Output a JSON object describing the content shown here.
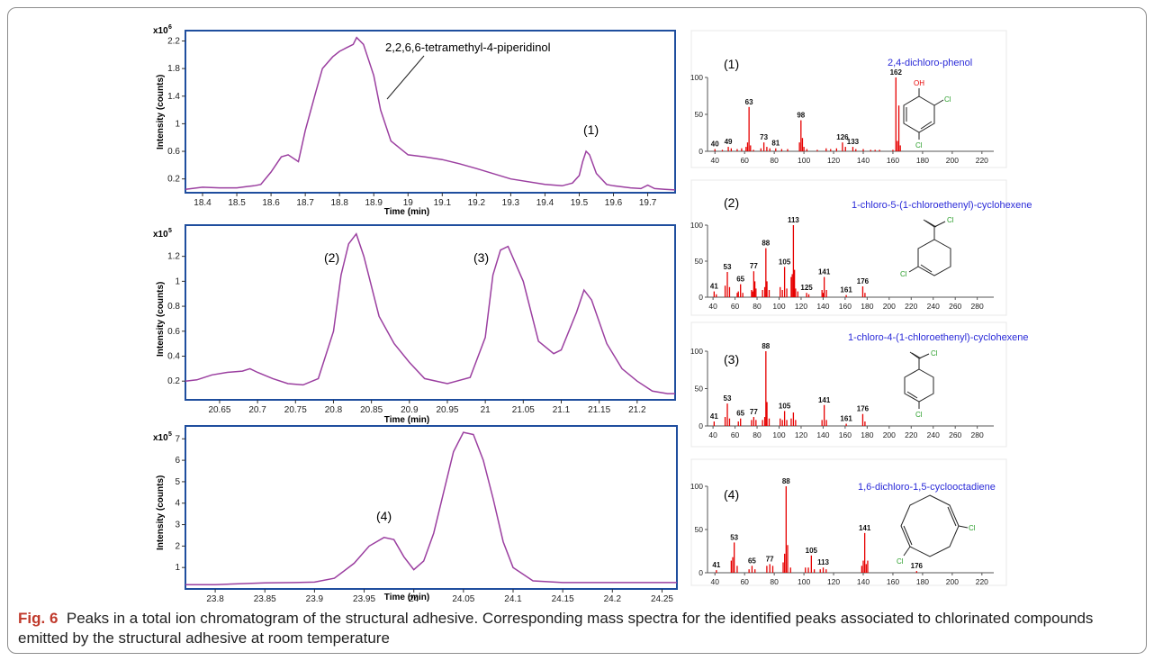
{
  "caption": {
    "label": "Fig. 6",
    "text": "Peaks in a total ion chromatogram of the structural adhesive. Corresponding mass spectra for the identified peaks associated to chlorinated compounds emitted by the structural adhesive at room temperature"
  },
  "colors": {
    "trace": "#9b3fa0",
    "frame": "#1f4e9e",
    "spectrum": "#e60000",
    "compound": "#2b2bd8"
  },
  "chart_data": [
    {
      "type": "line",
      "ylabel": "Intensity (counts)",
      "xlabel": "Time (min)",
      "y_multiplier": "x10",
      "y_exp": "6",
      "xlim": [
        18.35,
        19.78
      ],
      "ylim": [
        0,
        2.35
      ],
      "xticks": [
        "18.4",
        "18.5",
        "18.6",
        "18.7",
        "18.8",
        "18.9",
        "19",
        "19.1",
        "19.2",
        "19.3",
        "19.4",
        "19.5",
        "19.6",
        "19.7"
      ],
      "yticks": [
        "0.2",
        "0.6",
        "1",
        "1.4",
        "1.8",
        "2.2"
      ],
      "annotations": [
        "2,2,6,6-tetramethyl-4-piperidinol",
        "(1)"
      ],
      "series": [
        {
          "x": [
            18.35,
            18.4,
            18.45,
            18.5,
            18.53,
            18.55,
            18.57,
            18.6,
            18.63,
            18.65,
            18.68,
            18.7,
            18.73,
            18.75,
            18.78,
            18.8,
            18.82,
            18.84,
            18.85,
            18.86,
            18.87,
            18.88,
            18.9,
            18.92,
            18.95,
            19.0,
            19.05,
            19.1,
            19.15,
            19.2,
            19.3,
            19.4,
            19.45,
            19.48,
            19.5,
            19.51,
            19.52,
            19.53,
            19.55,
            19.58,
            19.6,
            19.65,
            19.68,
            19.7,
            19.72,
            19.75,
            19.78
          ],
          "y": [
            0.05,
            0.08,
            0.07,
            0.07,
            0.09,
            0.1,
            0.12,
            0.3,
            0.52,
            0.55,
            0.45,
            0.9,
            1.45,
            1.8,
            1.97,
            2.05,
            2.1,
            2.15,
            2.25,
            2.2,
            2.15,
            2.0,
            1.7,
            1.2,
            0.75,
            0.55,
            0.52,
            0.48,
            0.42,
            0.35,
            0.2,
            0.12,
            0.1,
            0.14,
            0.25,
            0.45,
            0.6,
            0.55,
            0.28,
            0.12,
            0.1,
            0.07,
            0.06,
            0.11,
            0.06,
            0.05,
            0.04
          ]
        }
      ]
    },
    {
      "type": "line",
      "ylabel": "Intensity (counts)",
      "xlabel": "Time (min)",
      "y_multiplier": "x10",
      "y_exp": "5",
      "xlim": [
        20.605,
        21.25
      ],
      "ylim": [
        0.05,
        1.45
      ],
      "xticks": [
        "20.65",
        "20.7",
        "20.75",
        "20.8",
        "20.85",
        "20.9",
        "20.95",
        "21",
        "21.05",
        "21.1",
        "21.15",
        "21.2"
      ],
      "yticks": [
        "0.2",
        "0.4",
        "0.6",
        "0.8",
        "1",
        "1.2"
      ],
      "annotations": [
        "(2)",
        "(3)"
      ],
      "series": [
        {
          "x": [
            20.605,
            20.62,
            20.64,
            20.66,
            20.68,
            20.69,
            20.7,
            20.72,
            20.74,
            20.76,
            20.78,
            20.8,
            20.81,
            20.82,
            20.83,
            20.84,
            20.86,
            20.88,
            20.9,
            20.92,
            20.95,
            20.98,
            21.0,
            21.01,
            21.02,
            21.03,
            21.05,
            21.07,
            21.09,
            21.1,
            21.12,
            21.13,
            21.14,
            21.16,
            21.18,
            21.2,
            21.22,
            21.24,
            21.25
          ],
          "y": [
            0.2,
            0.21,
            0.25,
            0.27,
            0.28,
            0.3,
            0.27,
            0.22,
            0.18,
            0.17,
            0.22,
            0.6,
            1.05,
            1.3,
            1.38,
            1.2,
            0.72,
            0.5,
            0.35,
            0.22,
            0.18,
            0.23,
            0.55,
            1.05,
            1.25,
            1.28,
            1.0,
            0.52,
            0.42,
            0.45,
            0.75,
            0.93,
            0.85,
            0.5,
            0.3,
            0.2,
            0.12,
            0.1,
            0.1
          ]
        }
      ]
    },
    {
      "type": "line",
      "ylabel": "Intensity (counts)",
      "xlabel": "Time (min)",
      "y_multiplier": "x10",
      "y_exp": "5",
      "xlim": [
        23.77,
        24.265
      ],
      "ylim": [
        0,
        7.6
      ],
      "xticks": [
        "23.8",
        "23.85",
        "23.9",
        "23.95",
        "24",
        "24.05",
        "24.1",
        "24.15",
        "24.2",
        "24.25"
      ],
      "yticks": [
        "1",
        "2",
        "3",
        "4",
        "5",
        "6",
        "7"
      ],
      "annotations": [
        "(4)"
      ],
      "series": [
        {
          "x": [
            23.77,
            23.8,
            23.85,
            23.88,
            23.9,
            23.92,
            23.94,
            23.955,
            23.97,
            23.98,
            23.99,
            24.0,
            24.01,
            24.02,
            24.03,
            24.04,
            24.05,
            24.06,
            24.07,
            24.08,
            24.09,
            24.1,
            24.12,
            24.15,
            24.2,
            24.265
          ],
          "y": [
            0.2,
            0.2,
            0.28,
            0.3,
            0.32,
            0.5,
            1.2,
            2.0,
            2.4,
            2.3,
            1.5,
            0.9,
            1.3,
            2.6,
            4.5,
            6.4,
            7.3,
            7.2,
            6.0,
            4.2,
            2.2,
            1.0,
            0.38,
            0.3,
            0.3,
            0.3
          ]
        }
      ]
    },
    {
      "type": "bar",
      "label": "(1)",
      "compound": "2,4-dichloro-phenol",
      "xlim": [
        35,
        228
      ],
      "ylim": [
        0,
        100
      ],
      "xticks": [
        "40",
        "60",
        "80",
        "100",
        "120",
        "140",
        "160",
        "180",
        "200",
        "220"
      ],
      "yticks": [
        "0",
        "50",
        "100"
      ],
      "x": [
        40,
        45,
        49,
        51,
        55,
        58,
        61,
        62,
        63,
        64,
        66,
        71,
        73,
        75,
        77,
        81,
        85,
        89,
        97,
        98,
        99,
        100,
        102,
        109,
        115,
        118,
        122,
        126,
        128,
        133,
        135,
        140,
        145,
        148,
        151,
        160,
        162,
        163,
        164,
        165
      ],
      "y": [
        3,
        2,
        6,
        4,
        3,
        4,
        6,
        12,
        60,
        8,
        2,
        4,
        12,
        6,
        4,
        4,
        3,
        3,
        12,
        42,
        18,
        6,
        3,
        2,
        4,
        3,
        4,
        12,
        6,
        6,
        3,
        3,
        2,
        2,
        2,
        2,
        100,
        14,
        62,
        8
      ],
      "labeled_peaks": [
        [
          40,
          "40"
        ],
        [
          49,
          "49"
        ],
        [
          63,
          "63"
        ],
        [
          73,
          "73"
        ],
        [
          81,
          "81"
        ],
        [
          98,
          "98"
        ],
        [
          126,
          "126"
        ],
        [
          133,
          "133"
        ],
        [
          162,
          "162"
        ]
      ],
      "structure_atoms": [
        "OH",
        "Cl",
        "Cl"
      ]
    },
    {
      "type": "bar",
      "label": "(2)",
      "compound": "1-chloro-5-(1-chloroethenyl)-cyclohexene",
      "xlim": [
        35,
        295
      ],
      "ylim": [
        0,
        100
      ],
      "xticks": [
        "40",
        "60",
        "80",
        "100",
        "120",
        "140",
        "160",
        "180",
        "200",
        "220",
        "240",
        "260",
        "280"
      ],
      "yticks": [
        "0",
        "50",
        "100"
      ],
      "x": [
        41,
        43,
        51,
        53,
        55,
        62,
        63,
        65,
        67,
        75,
        76,
        77,
        78,
        79,
        85,
        87,
        88,
        89,
        91,
        101,
        103,
        105,
        107,
        111,
        112,
        113,
        114,
        115,
        117,
        125,
        127,
        139,
        140,
        141,
        143,
        161,
        176,
        178
      ],
      "y": [
        8,
        4,
        16,
        35,
        14,
        6,
        8,
        18,
        6,
        10,
        8,
        36,
        22,
        12,
        10,
        14,
        68,
        22,
        10,
        14,
        10,
        42,
        12,
        28,
        32,
        100,
        38,
        12,
        8,
        6,
        4,
        10,
        6,
        28,
        10,
        3,
        15,
        6
      ],
      "labeled_peaks": [
        [
          41,
          "41"
        ],
        [
          53,
          "53"
        ],
        [
          65,
          "65"
        ],
        [
          77,
          "77"
        ],
        [
          88,
          "88"
        ],
        [
          105,
          "105"
        ],
        [
          113,
          "113"
        ],
        [
          125,
          "125"
        ],
        [
          141,
          "141"
        ],
        [
          161,
          "161"
        ],
        [
          176,
          "176"
        ]
      ],
      "structure_atoms": [
        "Cl",
        "Cl"
      ]
    },
    {
      "type": "bar",
      "label": "(3)",
      "compound": "1-chloro-4-(1-chloroethenyl)-cyclohexene",
      "xlim": [
        35,
        295
      ],
      "ylim": [
        0,
        100
      ],
      "xticks": [
        "40",
        "60",
        "80",
        "100",
        "120",
        "140",
        "160",
        "180",
        "200",
        "220",
        "240",
        "260",
        "280"
      ],
      "yticks": [
        "0",
        "50",
        "100"
      ],
      "x": [
        41,
        51,
        53,
        55,
        63,
        65,
        75,
        77,
        79,
        85,
        87,
        88,
        89,
        91,
        101,
        103,
        105,
        107,
        111,
        113,
        115,
        139,
        141,
        143,
        161,
        176,
        178
      ],
      "y": [
        6,
        12,
        30,
        10,
        6,
        10,
        8,
        12,
        8,
        8,
        12,
        100,
        32,
        10,
        10,
        8,
        20,
        8,
        10,
        18,
        8,
        8,
        28,
        8,
        3,
        16,
        6
      ],
      "labeled_peaks": [
        [
          41,
          "41"
        ],
        [
          53,
          "53"
        ],
        [
          65,
          "65"
        ],
        [
          77,
          "77"
        ],
        [
          88,
          "88"
        ],
        [
          105,
          "105"
        ],
        [
          141,
          "141"
        ],
        [
          161,
          "161"
        ],
        [
          176,
          "176"
        ]
      ],
      "structure_atoms": [
        "Cl",
        "Cl"
      ]
    },
    {
      "type": "bar",
      "label": "(4)",
      "compound": "1,6-dichloro-1,5-cyclooctadiene",
      "xlim": [
        35,
        228
      ],
      "ylim": [
        0,
        100
      ],
      "xticks": [
        "40",
        "60",
        "80",
        "100",
        "120",
        "140",
        "160",
        "180",
        "200",
        "220"
      ],
      "yticks": [
        "0",
        "50",
        "100"
      ],
      "x": [
        41,
        51,
        52,
        53,
        55,
        63,
        65,
        67,
        75,
        77,
        79,
        86,
        87,
        88,
        89,
        91,
        101,
        103,
        105,
        107,
        111,
        113,
        115,
        139,
        140,
        141,
        142,
        143,
        176
      ],
      "y": [
        3,
        14,
        18,
        35,
        8,
        4,
        8,
        4,
        8,
        10,
        8,
        12,
        22,
        100,
        32,
        6,
        6,
        6,
        20,
        4,
        4,
        6,
        4,
        8,
        14,
        46,
        10,
        14,
        2
      ],
      "labeled_peaks": [
        [
          41,
          "41"
        ],
        [
          53,
          "53"
        ],
        [
          65,
          "65"
        ],
        [
          77,
          "77"
        ],
        [
          88,
          "88"
        ],
        [
          105,
          "105"
        ],
        [
          113,
          "113"
        ],
        [
          141,
          "141"
        ],
        [
          176,
          "176"
        ]
      ],
      "structure_atoms": [
        "Cl",
        "Cl"
      ]
    }
  ]
}
